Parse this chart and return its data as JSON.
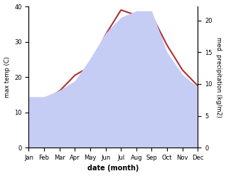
{
  "months": [
    "Jan",
    "Feb",
    "Mar",
    "Apr",
    "May",
    "Jun",
    "Jul",
    "Aug",
    "Sep",
    "Oct",
    "Nov",
    "Dec"
  ],
  "temperature": [
    13.5,
    13.5,
    16.0,
    20.5,
    23.0,
    32.0,
    39.0,
    37.5,
    37.5,
    29.0,
    22.0,
    17.5
  ],
  "precipitation": [
    8.0,
    8.0,
    9.0,
    10.5,
    14.0,
    18.0,
    20.5,
    21.5,
    21.5,
    15.0,
    11.5,
    9.5
  ],
  "temp_color": "#b03030",
  "precip_fill_color": "#c5cdf5",
  "left_ylabel": "max temp (C)",
  "right_ylabel": "med. precipitation (kg/m2)",
  "xlabel": "date (month)",
  "ylim_left": [
    0,
    40
  ],
  "ylim_right": [
    0,
    22.2
  ],
  "left_yticks": [
    0,
    10,
    20,
    30,
    40
  ],
  "right_yticks": [
    0,
    5,
    10,
    15,
    20
  ],
  "background_color": "#ffffff"
}
